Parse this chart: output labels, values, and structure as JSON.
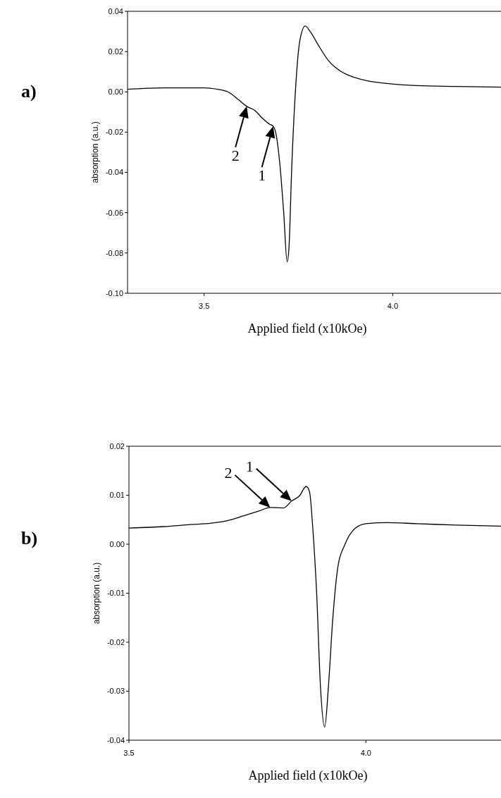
{
  "chart_data": [
    {
      "type": "line",
      "title": "a)",
      "xlabel": "Applied field (x10kOe)",
      "ylabel": "absorption (a.u.)",
      "xlim": [
        3.297,
        4.287
      ],
      "ylim": [
        -0.1,
        0.04
      ],
      "xticks": [
        3.5,
        {
          "value": 4.0,
          "label": "4.0"
        }
      ],
      "yticks": [
        {
          "value": -0.1,
          "label": "-0.10"
        },
        {
          "value": -0.08,
          "label": "-0.08"
        },
        {
          "value": -0.06,
          "label": "-0.06"
        },
        {
          "value": -0.04,
          "label": "-0.04"
        },
        {
          "value": -0.02,
          "label": "-0.02"
        },
        {
          "value": 0,
          "label": "0.00"
        },
        {
          "value": 0.02,
          "label": "0.02"
        },
        {
          "value": 0.04,
          "label": "0.04"
        }
      ],
      "grid": false,
      "marker": "none",
      "line_style": "solid",
      "series": [
        {
          "color": "#000000",
          "x": [
            3.297,
            3.394,
            3.5,
            3.535,
            3.563,
            3.592,
            3.613,
            3.634,
            3.655,
            3.673,
            3.683,
            3.69,
            3.701,
            3.711,
            3.72,
            3.725,
            3.732,
            3.743,
            3.754,
            3.768,
            3.782,
            3.803,
            3.831,
            3.859,
            3.887,
            3.93,
            3.993,
            4.063,
            4.169,
            4.287
          ],
          "values": [
            0.0013,
            0.002,
            0.002,
            0.0013,
            0.0,
            -0.004,
            -0.0072,
            -0.0092,
            -0.0132,
            -0.016,
            -0.0171,
            -0.0204,
            -0.0363,
            -0.06,
            -0.0844,
            -0.0772,
            -0.039,
            0.0033,
            0.0257,
            0.0327,
            0.0297,
            0.0231,
            0.0152,
            0.0106,
            0.0079,
            0.0056,
            0.004,
            0.0031,
            0.0027,
            0.0023
          ]
        }
      ],
      "annotations": [
        {
          "text": "2",
          "x": 3.613,
          "y": -0.0072
        },
        {
          "text": "1",
          "x": 3.683,
          "y": -0.0171
        }
      ]
    },
    {
      "type": "line",
      "title": "b)",
      "xlabel": "Applied field (x10kOe)",
      "ylabel": "absorption (a.u.)",
      "xlim": [
        3.5,
        4.285
      ],
      "ylim": [
        -0.04,
        0.02
      ],
      "xticks": [
        3.5,
        {
          "value": 4.0,
          "label": "4.0"
        }
      ],
      "yticks": [
        {
          "value": -0.04,
          "label": "-0.04"
        },
        {
          "value": -0.03,
          "label": "-0.03"
        },
        {
          "value": -0.02,
          "label": "-0.02"
        },
        {
          "value": -0.01,
          "label": "-0.01"
        },
        {
          "value": 0,
          "label": "0.00"
        },
        {
          "value": 0.01,
          "label": "0.01"
        },
        {
          "value": 0.02,
          "label": "0.02"
        }
      ],
      "grid": false,
      "marker": "none",
      "line_style": "solid",
      "series": [
        {
          "color": "#000000",
          "x": [
            3.5,
            3.573,
            3.629,
            3.674,
            3.702,
            3.742,
            3.775,
            3.798,
            3.826,
            3.843,
            3.86,
            3.874,
            3.881,
            3.888,
            3.896,
            3.904,
            3.913,
            3.921,
            3.93,
            3.941,
            3.955,
            3.978,
            4.0,
            4.045,
            4.107,
            4.191,
            4.285
          ],
          "values": [
            0.0033,
            0.0036,
            0.004,
            0.0043,
            0.0047,
            0.0058,
            0.0068,
            0.0075,
            0.0074,
            0.0088,
            0.0099,
            0.0118,
            0.0107,
            0.0031,
            -0.0099,
            -0.0289,
            -0.0373,
            -0.0289,
            -0.0153,
            -0.0045,
            -0.0002,
            0.0033,
            0.0042,
            0.0044,
            0.0042,
            0.0039,
            0.0037
          ]
        }
      ],
      "annotations": [
        {
          "text": "2",
          "x": 3.798,
          "y": 0.0075
        },
        {
          "text": "1",
          "x": 3.843,
          "y": 0.0088
        }
      ]
    }
  ]
}
